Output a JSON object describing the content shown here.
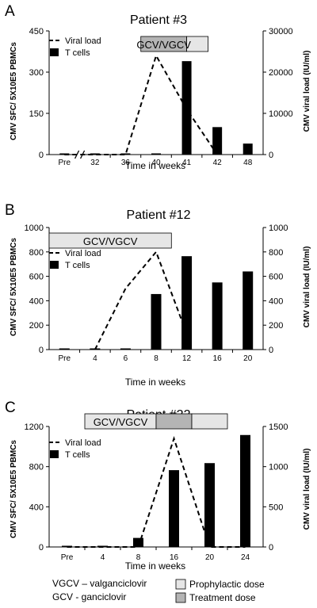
{
  "chart_data": [
    {
      "type": "bar",
      "panel": "A",
      "title": "Patient #3",
      "categories": [
        "Pre",
        "32",
        "36",
        "40",
        "41",
        "42",
        "48"
      ],
      "xlabel": "Time in weeks",
      "ylabel": "CMV SFC/ 5X10E5 PBMCs",
      "y2label": "CMV viral load (IU/ml)",
      "ylim": [
        0,
        450
      ],
      "yticks": [
        0,
        150,
        300,
        450
      ],
      "y2lim": [
        0,
        30000
      ],
      "y2ticks": [
        0,
        10000,
        20000,
        30000
      ],
      "axis_break_after": "Pre",
      "legend": [
        "Viral load",
        "T cells"
      ],
      "treatment_bar": [
        {
          "label": "GCV/VGCV",
          "kind": "treatment",
          "from": 3,
          "to": 4.5
        },
        {
          "label": "",
          "kind": "prophylactic",
          "from": 4.5,
          "to": 5.2
        }
      ],
      "series": [
        {
          "name": "T cells",
          "type": "bar",
          "values": [
            0,
            0,
            0,
            3,
            340,
            100,
            40
          ]
        },
        {
          "name": "Viral load",
          "type": "line",
          "axis": "right",
          "values": [
            0,
            0,
            0,
            24000,
            11000,
            0,
            null
          ]
        }
      ]
    },
    {
      "type": "bar",
      "panel": "B",
      "title": "Patient #12",
      "categories": [
        "Pre",
        "4",
        "6",
        "8",
        "12",
        "16",
        "20"
      ],
      "xlabel": "Time in weeks",
      "ylabel": "CMV SFC/ 5X10E5 PBMCs",
      "y2label": "CMV viral load (IU/ml)",
      "ylim": [
        0,
        1000
      ],
      "yticks": [
        0,
        200,
        400,
        600,
        800,
        1000
      ],
      "y2lim": [
        0,
        1000
      ],
      "y2ticks": [
        0,
        200,
        400,
        600,
        800,
        1000
      ],
      "legend": [
        "Viral load",
        "T cells"
      ],
      "treatment_bar": [
        {
          "label": "GCV/VGCV",
          "kind": "prophylactic",
          "from": 0,
          "to": 4
        }
      ],
      "series": [
        {
          "name": "T cells",
          "type": "bar",
          "values": [
            0,
            0,
            0,
            455,
            765,
            550,
            640
          ]
        },
        {
          "name": "Viral load",
          "type": "line",
          "axis": "right",
          "values": [
            null,
            0,
            500,
            800,
            130,
            null,
            null
          ]
        }
      ]
    },
    {
      "type": "bar",
      "panel": "C",
      "title": "Patient #22",
      "categories": [
        "Pre",
        "4",
        "8",
        "16",
        "20",
        "24"
      ],
      "xlabel": "Time in weeks",
      "ylabel": "CMV SFC/ 5X10E5 PBMCs",
      "y2label": "CMV viral load (IU/ml)",
      "ylim": [
        0,
        1200
      ],
      "yticks": [
        0,
        400,
        800,
        1200
      ],
      "y2lim": [
        0,
        1500
      ],
      "y2ticks": [
        0,
        500,
        1000,
        1500
      ],
      "legend": [
        "Viral load",
        "T cells"
      ],
      "treatment_bar": [
        {
          "label": "GCV/VGCV",
          "kind": "prophylactic",
          "from": 1.0,
          "to": 3.0
        },
        {
          "label": "",
          "kind": "treatment",
          "from": 3.0,
          "to": 4.0
        },
        {
          "label": "",
          "kind": "prophylactic",
          "from": 4.0,
          "to": 5.0
        }
      ],
      "series": [
        {
          "name": "T cells",
          "type": "bar",
          "values": [
            0,
            0,
            90,
            765,
            835,
            1115
          ]
        },
        {
          "name": "Viral load",
          "type": "line",
          "axis": "right",
          "values": [
            0,
            0,
            0,
            1350,
            0,
            0
          ]
        }
      ]
    }
  ],
  "footer": {
    "abbrev_1": "VGCV – valganciclovir",
    "abbrev_2": "GCV - ganciclovir",
    "legend_prophylactic": "Prophylactic dose",
    "legend_treatment": "Treatment dose"
  },
  "colors": {
    "prophylactic": "#e6e6e6",
    "treatment": "#b4b4b4",
    "bar": "#000000"
  }
}
